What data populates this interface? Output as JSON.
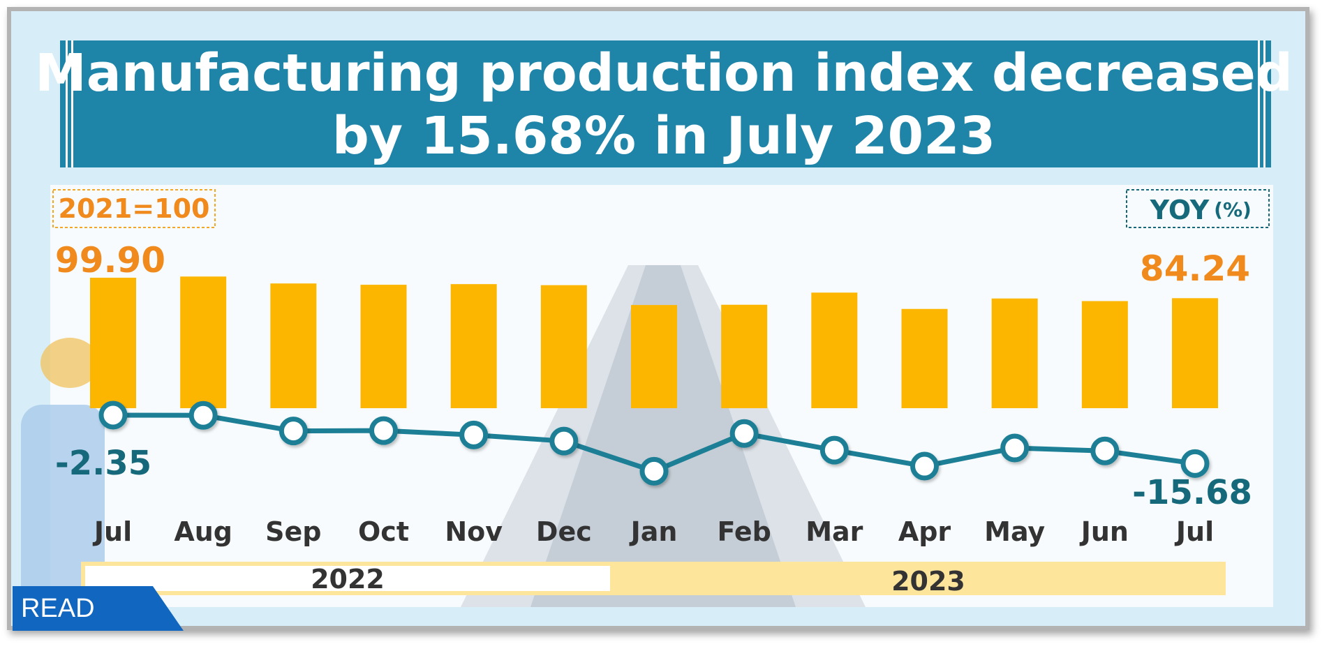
{
  "title_line1": "Manufacturing production index decreased",
  "title_line2": "by 15.68% in July 2023",
  "index_label": "2021=100",
  "yoy_label": "YOY",
  "yoy_unit": "(%)",
  "first_index_label": "99.90",
  "last_index_label": "84.24",
  "first_yoy_label": "-2.35",
  "last_yoy_label": "-15.68",
  "year_left": "2022",
  "year_right": "2023",
  "read_button": "READ",
  "colors": {
    "title_bg": "#1f85a8",
    "bar": "#fdb600",
    "line": "#1d7f96",
    "index_text": "#f08a1c",
    "yoy_text": "#16697a"
  },
  "chart_data": {
    "type": "bar",
    "categories": [
      "Jul",
      "Aug",
      "Sep",
      "Oct",
      "Nov",
      "Dec",
      "Jan",
      "Feb",
      "Mar",
      "Apr",
      "May",
      "Jun",
      "Jul"
    ],
    "series": [
      {
        "name": "2021=100",
        "type": "bar",
        "values": [
          99.9,
          100.8,
          95.5,
          94.5,
          95.0,
          94.2,
          79.0,
          79.2,
          88.5,
          76.0,
          84.0,
          82.0,
          84.24
        ]
      },
      {
        "name": "YOY (%)",
        "type": "line",
        "values": [
          -2.35,
          -2.4,
          -6.7,
          -6.6,
          -7.8,
          -9.5,
          -17.8,
          -7.4,
          -12.0,
          -16.4,
          -11.4,
          -12.2,
          -15.68
        ]
      }
    ],
    "x_groups": [
      {
        "label": "2022",
        "categories": 6
      },
      {
        "label": "2023",
        "categories": 7
      }
    ],
    "grid": false
  }
}
